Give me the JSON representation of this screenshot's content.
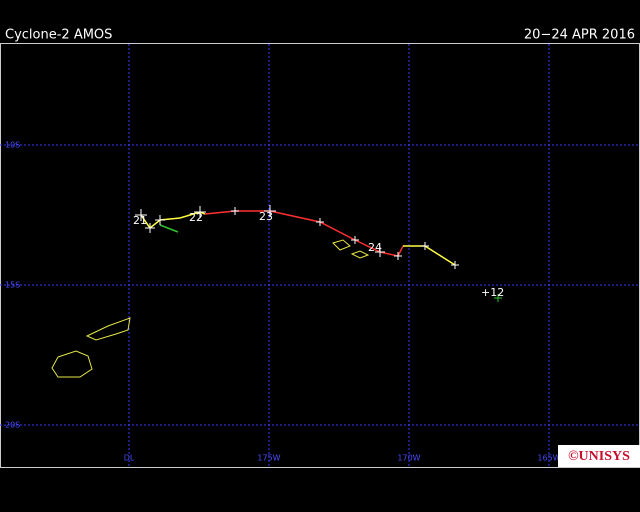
{
  "header": {
    "title": "Cyclone-2 AMOS",
    "dates": "20−24 APR 2016"
  },
  "map": {
    "lat_labels": [
      "10S",
      "15S",
      "20S"
    ],
    "lon_labels": [
      "DL",
      "175W",
      "170W",
      "165W"
    ],
    "track_labels": [
      "21",
      "22",
      "23",
      "24",
      "+12"
    ]
  },
  "logo": "©UNISYS"
}
